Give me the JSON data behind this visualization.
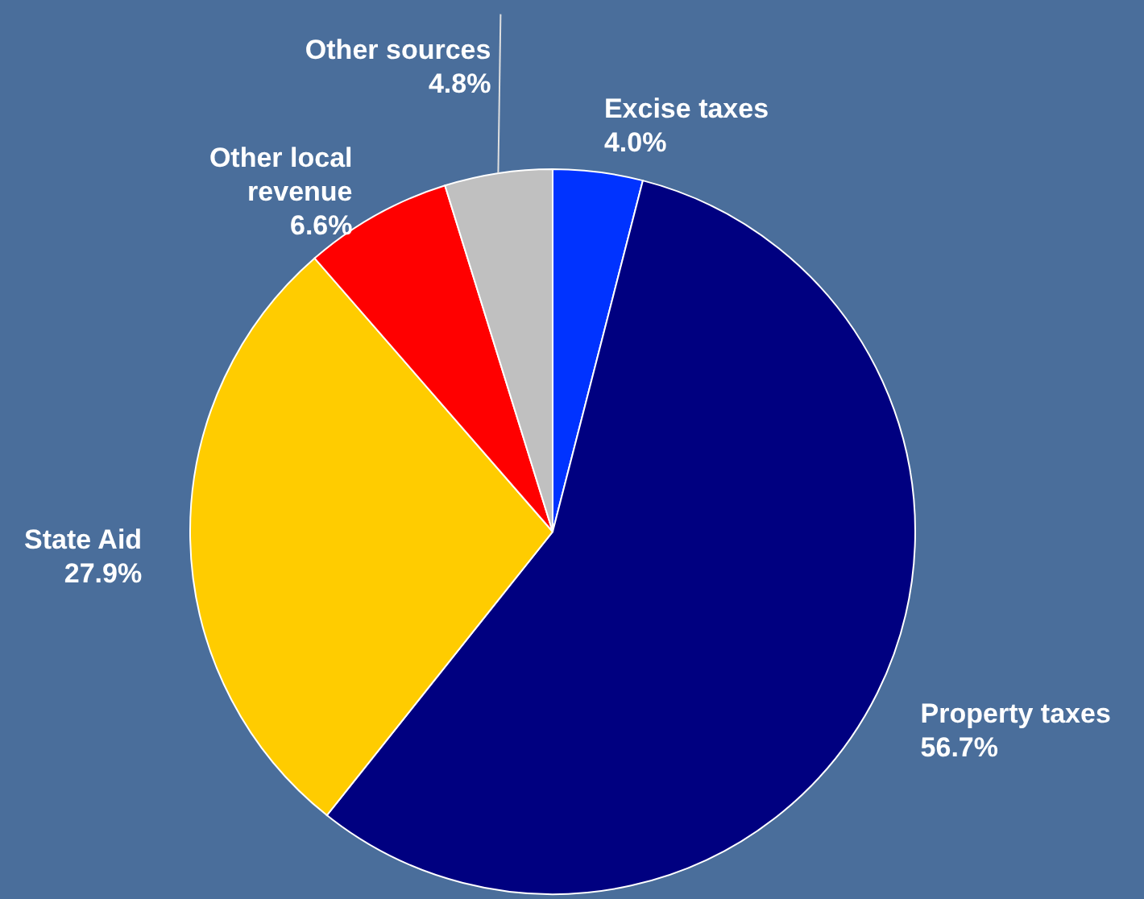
{
  "chart_data": {
    "type": "pie",
    "categories": [
      "Excise taxes",
      "Property taxes",
      "State Aid",
      "Other local revenue",
      "Other sources"
    ],
    "values": [
      4.0,
      56.7,
      27.9,
      6.6,
      4.8
    ],
    "colors": [
      "#0033ff",
      "#000080",
      "#ffcc00",
      "#ff0000",
      "#c0c0c0"
    ],
    "value_labels": [
      "4.0%",
      "56.7%",
      "27.9%",
      "6.6%",
      "4.8%"
    ]
  }
}
